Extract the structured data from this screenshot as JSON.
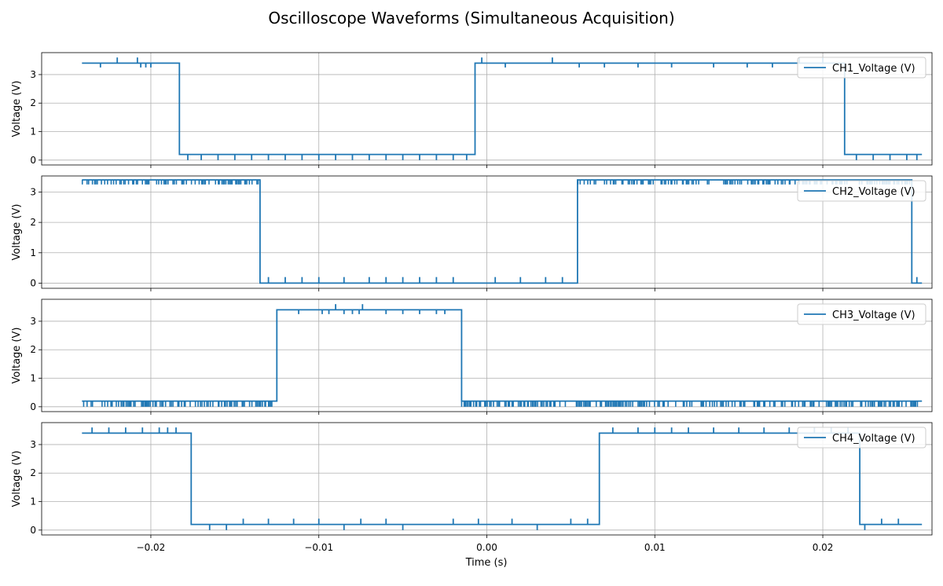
{
  "chart_data": {
    "type": "line",
    "title": "Oscilloscope Waveforms (Simultaneous Acquisition)",
    "xlabel": "Time (s)",
    "xlim": [
      -0.0265,
      0.0265
    ],
    "x_ticks": [
      -0.02,
      -0.01,
      0.0,
      0.01,
      0.02
    ],
    "x_tick_labels": [
      "−0.02",
      "−0.01",
      "0.00",
      "0.01",
      "0.02"
    ],
    "grid": true,
    "legend_position": "top-right",
    "line_color": "#1f77b4",
    "panels": [
      {
        "ylabel": "Voltage (V)",
        "ylim": [
          -0.17,
          3.77
        ],
        "y_ticks": [
          0,
          1,
          2,
          3
        ],
        "series": [
          {
            "name": "CH1_Voltage (V)",
            "x": [
              -0.0241,
              -0.0183,
              -0.0183,
              -0.0007,
              -0.0007,
              0.0213,
              0.0213,
              0.0259
            ],
            "y": [
              3.4,
              3.4,
              0.2,
              0.2,
              3.4,
              3.4,
              0.2,
              0.2
            ],
            "spikes": [
              {
                "x": -0.023,
                "y": 3.25
              },
              {
                "x": -0.022,
                "y": 3.6
              },
              {
                "x": -0.0208,
                "y": 3.6
              },
              {
                "x": -0.0206,
                "y": 3.25
              },
              {
                "x": -0.0203,
                "y": 3.25
              },
              {
                "x": -0.02,
                "y": 3.25
              },
              {
                "x": -0.0178,
                "y": 0.0
              },
              {
                "x": -0.017,
                "y": 0.0
              },
              {
                "x": -0.016,
                "y": 0.0
              },
              {
                "x": -0.015,
                "y": 0.0
              },
              {
                "x": -0.014,
                "y": 0.0
              },
              {
                "x": -0.013,
                "y": 0.0
              },
              {
                "x": -0.012,
                "y": 0.0
              },
              {
                "x": -0.011,
                "y": 0.0
              },
              {
                "x": -0.01,
                "y": 0.0
              },
              {
                "x": -0.009,
                "y": 0.0
              },
              {
                "x": -0.008,
                "y": 0.0
              },
              {
                "x": -0.007,
                "y": 0.0
              },
              {
                "x": -0.006,
                "y": 0.0
              },
              {
                "x": -0.005,
                "y": 0.0
              },
              {
                "x": -0.004,
                "y": 0.0
              },
              {
                "x": -0.003,
                "y": 0.0
              },
              {
                "x": -0.002,
                "y": 0.0
              },
              {
                "x": -0.0012,
                "y": 0.0
              },
              {
                "x": -0.0003,
                "y": 3.6
              },
              {
                "x": 0.0011,
                "y": 3.25
              },
              {
                "x": 0.0039,
                "y": 3.6
              },
              {
                "x": 0.0055,
                "y": 3.25
              },
              {
                "x": 0.007,
                "y": 3.25
              },
              {
                "x": 0.009,
                "y": 3.25
              },
              {
                "x": 0.011,
                "y": 3.25
              },
              {
                "x": 0.0135,
                "y": 3.25
              },
              {
                "x": 0.0155,
                "y": 3.25
              },
              {
                "x": 0.017,
                "y": 3.25
              },
              {
                "x": 0.0186,
                "y": 3.6
              },
              {
                "x": 0.02,
                "y": 3.6
              },
              {
                "x": 0.022,
                "y": 0.0
              },
              {
                "x": 0.023,
                "y": 0.0
              },
              {
                "x": 0.024,
                "y": 0.0
              },
              {
                "x": 0.025,
                "y": 0.0
              },
              {
                "x": 0.0256,
                "y": 0.0
              }
            ]
          }
        ]
      },
      {
        "ylabel": "Voltage (V)",
        "ylim": [
          -0.17,
          3.53
        ],
        "y_ticks": [
          0,
          1,
          2,
          3
        ],
        "series": [
          {
            "name": "CH2_Voltage (V)",
            "x": [
              -0.0241,
              -0.0135,
              -0.0135,
              0.0054,
              0.0054,
              0.0253,
              0.0253,
              0.0259
            ],
            "y": [
              3.4,
              3.4,
              0.0,
              0.0,
              3.4,
              3.4,
              0.0,
              0.0
            ],
            "noise_bands": [
              {
                "x0": -0.0241,
                "x1": -0.0135,
                "y": 3.25
              },
              {
                "x0": 0.0054,
                "x1": 0.0253,
                "y": 3.25
              }
            ],
            "spikes": [
              {
                "x": -0.013,
                "y": 0.2
              },
              {
                "x": -0.012,
                "y": 0.2
              },
              {
                "x": -0.011,
                "y": 0.2
              },
              {
                "x": -0.01,
                "y": 0.2
              },
              {
                "x": -0.0085,
                "y": 0.2
              },
              {
                "x": -0.007,
                "y": 0.2
              },
              {
                "x": -0.006,
                "y": 0.2
              },
              {
                "x": -0.005,
                "y": 0.2
              },
              {
                "x": -0.004,
                "y": 0.2
              },
              {
                "x": -0.003,
                "y": 0.2
              },
              {
                "x": -0.002,
                "y": 0.2
              },
              {
                "x": 0.0005,
                "y": 0.2
              },
              {
                "x": 0.002,
                "y": 0.2
              },
              {
                "x": 0.0035,
                "y": 0.2
              },
              {
                "x": 0.0045,
                "y": 0.2
              },
              {
                "x": 0.0256,
                "y": 0.2
              }
            ]
          }
        ]
      },
      {
        "ylabel": "Voltage (V)",
        "ylim": [
          -0.17,
          3.77
        ],
        "y_ticks": [
          0,
          1,
          2,
          3
        ],
        "series": [
          {
            "name": "CH3_Voltage (V)",
            "x": [
              -0.0241,
              -0.0125,
              -0.0125,
              -0.0015,
              -0.0015,
              0.0259
            ],
            "y": [
              0.2,
              0.2,
              3.4,
              3.4,
              0.2,
              0.2
            ],
            "noise_bands": [
              {
                "x0": -0.0241,
                "x1": -0.0125,
                "y": 0.0
              },
              {
                "x0": -0.0015,
                "x1": 0.0259,
                "y": 0.0
              }
            ],
            "spikes": [
              {
                "x": -0.0112,
                "y": 3.25
              },
              {
                "x": -0.0098,
                "y": 3.25
              },
              {
                "x": -0.0094,
                "y": 3.25
              },
              {
                "x": -0.009,
                "y": 3.6
              },
              {
                "x": -0.0085,
                "y": 3.25
              },
              {
                "x": -0.008,
                "y": 3.25
              },
              {
                "x": -0.0076,
                "y": 3.25
              },
              {
                "x": -0.0074,
                "y": 3.6
              },
              {
                "x": -0.006,
                "y": 3.25
              },
              {
                "x": -0.005,
                "y": 3.25
              },
              {
                "x": -0.004,
                "y": 3.25
              },
              {
                "x": -0.003,
                "y": 3.25
              },
              {
                "x": -0.0025,
                "y": 3.25
              }
            ]
          }
        ]
      },
      {
        "ylabel": "Voltage (V)",
        "ylim": [
          -0.17,
          3.77
        ],
        "y_ticks": [
          0,
          1,
          2,
          3
        ],
        "series": [
          {
            "name": "CH4_Voltage (V)",
            "x": [
              -0.0241,
              -0.0176,
              -0.0176,
              0.0067,
              0.0067,
              0.0222,
              0.0222,
              0.0259
            ],
            "y": [
              3.4,
              3.4,
              0.2,
              0.2,
              3.4,
              3.4,
              0.2,
              0.2
            ],
            "spikes": [
              {
                "x": -0.0235,
                "y": 3.6
              },
              {
                "x": -0.0225,
                "y": 3.6
              },
              {
                "x": -0.0215,
                "y": 3.6
              },
              {
                "x": -0.0205,
                "y": 3.6
              },
              {
                "x": -0.0195,
                "y": 3.6
              },
              {
                "x": -0.019,
                "y": 3.6
              },
              {
                "x": -0.0185,
                "y": 3.6
              },
              {
                "x": -0.0165,
                "y": 0.0
              },
              {
                "x": -0.0155,
                "y": 0.0
              },
              {
                "x": -0.0145,
                "y": 0.4
              },
              {
                "x": -0.013,
                "y": 0.4
              },
              {
                "x": -0.0115,
                "y": 0.4
              },
              {
                "x": -0.01,
                "y": 0.4
              },
              {
                "x": -0.0085,
                "y": 0.0
              },
              {
                "x": -0.0075,
                "y": 0.4
              },
              {
                "x": -0.006,
                "y": 0.4
              },
              {
                "x": -0.005,
                "y": 0.0
              },
              {
                "x": -0.002,
                "y": 0.4
              },
              {
                "x": -0.0005,
                "y": 0.4
              },
              {
                "x": 0.0015,
                "y": 0.4
              },
              {
                "x": 0.003,
                "y": 0.0
              },
              {
                "x": 0.005,
                "y": 0.4
              },
              {
                "x": 0.006,
                "y": 0.4
              },
              {
                "x": 0.0075,
                "y": 3.6
              },
              {
                "x": 0.009,
                "y": 3.6
              },
              {
                "x": 0.01,
                "y": 3.6
              },
              {
                "x": 0.011,
                "y": 3.6
              },
              {
                "x": 0.012,
                "y": 3.6
              },
              {
                "x": 0.0135,
                "y": 3.6
              },
              {
                "x": 0.015,
                "y": 3.6
              },
              {
                "x": 0.0165,
                "y": 3.6
              },
              {
                "x": 0.018,
                "y": 3.6
              },
              {
                "x": 0.0195,
                "y": 3.6
              },
              {
                "x": 0.0205,
                "y": 3.6
              },
              {
                "x": 0.0215,
                "y": 3.6
              },
              {
                "x": 0.0225,
                "y": 0.0
              },
              {
                "x": 0.0235,
                "y": 0.4
              },
              {
                "x": 0.0245,
                "y": 0.4
              }
            ]
          }
        ]
      }
    ]
  }
}
